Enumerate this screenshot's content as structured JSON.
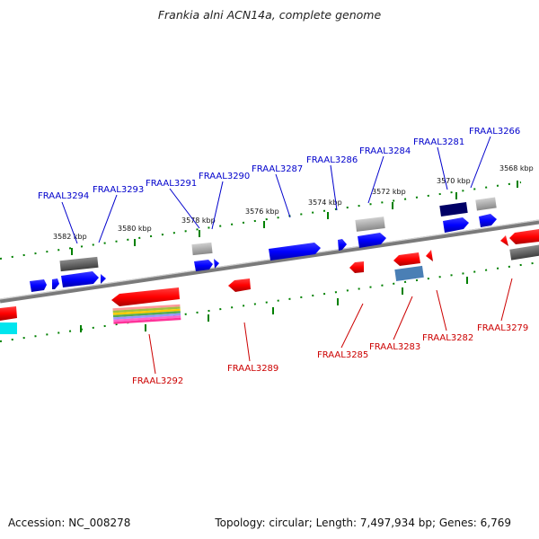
{
  "title": "Frankia alni ACN14a, complete genome",
  "footer": {
    "accession": "Accession: NC_008278",
    "summary": "Topology: circular; Length: 7,497,934 bp; Genes: 6,769"
  },
  "colors": {
    "forward_label": "#0000cc",
    "reverse_label": "#cc0000",
    "backbone": "#888888",
    "tick": "#008000"
  },
  "kbp_labels": [
    "3582 kbp",
    "3580 kbp",
    "3578 kbp",
    "3576 kbp",
    "3574 kbp",
    "3572 kbp",
    "3570 kbp",
    "3568 kbp"
  ],
  "forward_genes": [
    "FRAAL3294",
    "FRAAL3293",
    "FRAAL3291",
    "FRAAL3290",
    "FRAAL3287",
    "FRAAL3286",
    "FRAAL3284",
    "FRAAL3281",
    "FRAAL3266"
  ],
  "reverse_genes": [
    "FRAAL3292",
    "FRAAL3289",
    "FRAAL3285",
    "FRAAL3283",
    "FRAAL3282",
    "FRAAL3279"
  ]
}
